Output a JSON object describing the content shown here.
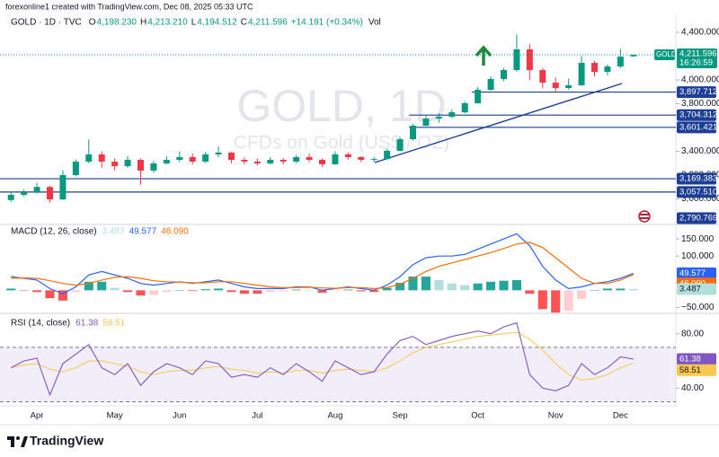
{
  "attribution": "forexonline1 created with TradingView.com, Dec 08, 2025 05:33 UTC",
  "footer": {
    "brand": "TradingView"
  },
  "chart_data": [
    {
      "type": "candlestick",
      "symbol": "GOLD · 1D · TVC",
      "ohlc_legend": [
        {
          "label": "O",
          "value": "4,198.230"
        },
        {
          "label": "H",
          "value": "4,213.210"
        },
        {
          "label": "L",
          "value": "4,194.512"
        },
        {
          "label": "C",
          "value": "4,211.596"
        }
      ],
      "change": "+14.191 (+0.34%)",
      "volume_label": "Vol",
      "watermark": [
        "GOLD, 1D",
        "CFDs on Gold (US$ / OZ)"
      ],
      "categories": [
        null,
        null,
        "Apr",
        null,
        null,
        null,
        null,
        null,
        "May",
        null,
        null,
        null,
        null,
        "Jun",
        null,
        null,
        null,
        null,
        null,
        "Jul",
        null,
        null,
        null,
        null,
        null,
        "Aug",
        null,
        null,
        null,
        null,
        "Sep",
        null,
        null,
        null,
        null,
        null,
        "Oct",
        null,
        null,
        null,
        null,
        null,
        "Nov",
        null,
        null,
        null,
        null,
        "Dec",
        null
      ],
      "open": [
        2990,
        3034,
        3057,
        3100,
        2996,
        3200,
        3313,
        3374,
        3313,
        3275,
        3328,
        3238,
        3298,
        3328,
        3351,
        3313,
        3374,
        3389,
        3328,
        3313,
        3298,
        3328,
        3313,
        3351,
        3328,
        3291,
        3374,
        3351,
        3328,
        3335,
        3404,
        3502,
        3615,
        3675,
        3690,
        3728,
        3804,
        3917,
        4008,
        4083,
        4257,
        4083,
        3977,
        3932,
        3955,
        4143,
        4068,
        4113,
        4198.23
      ],
      "high": [
        3057,
        3080,
        3135,
        3110,
        3240,
        3330,
        3500,
        3400,
        3340,
        3360,
        3340,
        3320,
        3360,
        3400,
        3380,
        3395,
        3440,
        3395,
        3350,
        3340,
        3350,
        3345,
        3370,
        3380,
        3340,
        3400,
        3390,
        3360,
        3350,
        3420,
        3520,
        3630,
        3700,
        3720,
        3750,
        3820,
        3940,
        4030,
        4100,
        4380,
        4300,
        4100,
        4020,
        4010,
        4200,
        4160,
        4130,
        4260,
        4213.21
      ],
      "low": [
        2975,
        3020,
        3045,
        2970,
        2990,
        3190,
        3300,
        3260,
        3240,
        3260,
        3120,
        3220,
        3290,
        3310,
        3290,
        3300,
        3350,
        3300,
        3290,
        3280,
        3290,
        3290,
        3300,
        3310,
        3270,
        3285,
        3330,
        3310,
        3310,
        3330,
        3400,
        3490,
        3610,
        3640,
        3680,
        3720,
        3800,
        3910,
        3990,
        4070,
        4000,
        3930,
        3890,
        3920,
        3950,
        4030,
        4040,
        4100,
        4194.512
      ],
      "close": [
        3034,
        3057,
        3100,
        2996,
        3200,
        3313,
        3374,
        3313,
        3275,
        3328,
        3238,
        3298,
        3328,
        3351,
        3313,
        3374,
        3389,
        3328,
        3313,
        3298,
        3328,
        3313,
        3351,
        3328,
        3291,
        3374,
        3351,
        3328,
        3335,
        3404,
        3502,
        3615,
        3675,
        3690,
        3728,
        3804,
        3917,
        4008,
        4083,
        4257,
        4083,
        3977,
        3932,
        3955,
        4143,
        4068,
        4113,
        4196,
        4211.596
      ],
      "up_color": "#089981",
      "down_color": "#f23645",
      "ylim": [
        2800,
        4536
      ],
      "yticks": [
        {
          "value": 4400,
          "label": "4,400.000"
        },
        {
          "value": 4000,
          "label": "4,000.000"
        },
        {
          "value": 3800,
          "label": "3,800.000"
        },
        {
          "value": 3400,
          "label": "3,400.000"
        },
        {
          "value": 3200,
          "label": "3,200.000"
        },
        {
          "value": 3000,
          "label": "3,000.000"
        }
      ],
      "levels": [
        {
          "value": 3897.712,
          "label": "3,897.712"
        },
        {
          "value": 3704.312,
          "label": "3,704.312"
        },
        {
          "value": 3601.421,
          "label": "3,601.421"
        },
        {
          "value": 3169.383,
          "label": "3,169.383"
        },
        {
          "value": 3057.51,
          "label": "3,057.510"
        },
        {
          "value": 2790.769,
          "label": "2,790.769"
        }
      ],
      "level_color": "#1c3f95",
      "last_price": {
        "label": "4,211.596",
        "countdown": "16:26:59",
        "color": "#089981"
      }
    },
    {
      "type": "macd",
      "title": "MACD (12, 26, close)",
      "legend_values": [
        "3.487",
        "49.577",
        "46.090"
      ],
      "series": [
        {
          "color": "#2962ff",
          "values": [
            40,
            35,
            30,
            5,
            -10,
            10,
            45,
            55,
            45,
            35,
            20,
            15,
            20,
            25,
            20,
            25,
            30,
            20,
            10,
            5,
            5,
            5,
            10,
            10,
            0,
            5,
            10,
            5,
            0,
            15,
            40,
            75,
            95,
            100,
            100,
            105,
            120,
            135,
            150,
            165,
            130,
            70,
            30,
            5,
            10,
            20,
            25,
            35,
            49.577
          ]
        },
        {
          "color": "#ff6d00",
          "values": [
            35,
            36,
            35,
            28,
            20,
            15,
            20,
            30,
            38,
            40,
            35,
            28,
            25,
            24,
            22,
            22,
            25,
            25,
            20,
            15,
            10,
            8,
            8,
            9,
            7,
            6,
            8,
            8,
            5,
            8,
            18,
            35,
            55,
            70,
            80,
            90,
            100,
            110,
            122,
            135,
            140,
            125,
            95,
            65,
            35,
            20,
            20,
            30,
            46.09
          ]
        }
      ],
      "histogram": {
        "values": [
          5,
          -1,
          -5,
          -23,
          -30,
          -5,
          25,
          25,
          7,
          -5,
          -15,
          -13,
          -5,
          1,
          -2,
          3,
          5,
          -5,
          -10,
          -10,
          -5,
          -3,
          2,
          1,
          -7,
          -1,
          2,
          -3,
          -5,
          7,
          22,
          40,
          40,
          30,
          20,
          15,
          20,
          25,
          28,
          30,
          -10,
          -55,
          -65,
          -60,
          -25,
          0,
          5,
          5,
          3.487
        ],
        "colors": {
          "pos_rising": "#26a69a",
          "pos_falling": "#b2dfdb",
          "neg_falling": "#ff5252",
          "neg_rising": "#ffcdd2"
        }
      },
      "ylim": [
        -62,
        187
      ],
      "yticks": [
        {
          "value": 150,
          "label": "150.000"
        },
        {
          "value": 100,
          "label": "100.000"
        },
        {
          "value": -50,
          "label": "−50.000"
        }
      ]
    },
    {
      "type": "rsi",
      "title": "RSI (14, close)",
      "legend_values": [
        "61.38",
        "58.51"
      ],
      "series": [
        {
          "color": "#7e57c2",
          "values": [
            55,
            60,
            62,
            35,
            58,
            65,
            72,
            55,
            50,
            58,
            42,
            52,
            58,
            55,
            50,
            60,
            58,
            48,
            50,
            48,
            55,
            50,
            58,
            52,
            45,
            60,
            55,
            50,
            52,
            65,
            75,
            78,
            72,
            75,
            78,
            80,
            82,
            80,
            85,
            88,
            50,
            40,
            38,
            42,
            58,
            50,
            55,
            63,
            61.38
          ]
        },
        {
          "color": "#f9c74f",
          "values": [
            55,
            57,
            58,
            54,
            52,
            55,
            60,
            60,
            58,
            56,
            52,
            50,
            52,
            53,
            53,
            55,
            56,
            54,
            53,
            51,
            52,
            51,
            53,
            53,
            51,
            53,
            54,
            53,
            52,
            55,
            60,
            66,
            70,
            72,
            74,
            76,
            78,
            79,
            80,
            81,
            76,
            68,
            58,
            50,
            46,
            47,
            50,
            55,
            58.51
          ]
        }
      ],
      "bands": [
        70,
        30
      ],
      "band_color": "#7e57c2",
      "ylim": [
        27,
        93
      ],
      "yticks": [
        {
          "value": 80,
          "label": "80.00"
        },
        {
          "value": 40,
          "label": "40.00"
        }
      ]
    }
  ]
}
